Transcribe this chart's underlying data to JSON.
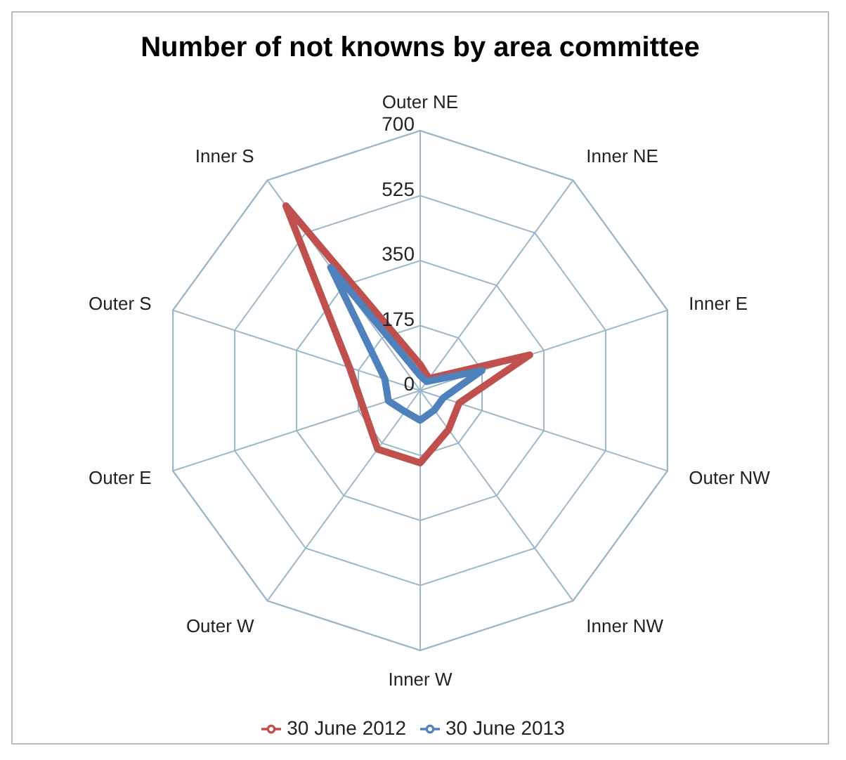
{
  "chart_data": {
    "type": "radar",
    "title": "Number of not knowns by area committee",
    "categories": [
      "Outer NE",
      "Inner NE",
      "Inner E",
      "Outer NW",
      "Inner NW",
      "Inner W",
      "Outer W",
      "Outer E",
      "Outer S",
      "Inner S"
    ],
    "series": [
      {
        "name": "30 June 2012",
        "color": "#c0504d",
        "values": [
          70,
          40,
          310,
          110,
          130,
          195,
          195,
          160,
          200,
          615
        ]
      },
      {
        "name": "30 June 2013",
        "color": "#4f81bd",
        "values": [
          40,
          30,
          175,
          65,
          65,
          80,
          70,
          90,
          100,
          410
        ]
      }
    ],
    "ylim": [
      0,
      700
    ],
    "yticks": [
      0,
      175,
      350,
      525,
      700
    ],
    "grid": true,
    "legend": "bottom",
    "marker": "none"
  }
}
